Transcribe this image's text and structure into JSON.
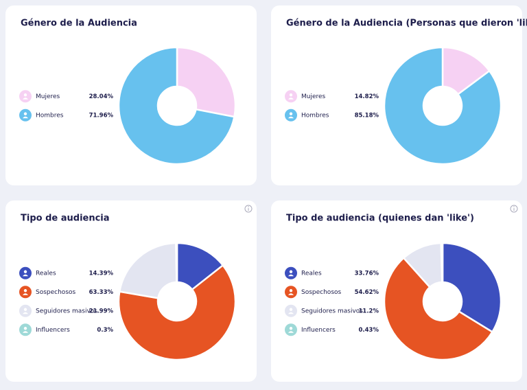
{
  "chart_data": [
    {
      "type": "pie",
      "title": "Género de la Audiencia",
      "categories": [
        "Mujeres",
        "Hombres"
      ],
      "values": [
        28.04,
        71.96
      ],
      "value_labels": [
        "28.04%",
        "71.96%"
      ],
      "colors": [
        "#f6d1f3",
        "#67c1ee"
      ]
    },
    {
      "type": "pie",
      "title": "Género de la Audiencia (Personas que dieron 'like')",
      "categories": [
        "Mujeres",
        "Hombres"
      ],
      "values": [
        14.82,
        85.18
      ],
      "value_labels": [
        "14.82%",
        "85.18%"
      ],
      "colors": [
        "#f6d1f3",
        "#67c1ee"
      ]
    },
    {
      "type": "pie",
      "title": "Tipo de audiencia",
      "categories": [
        "Reales",
        "Sospechosos",
        "Seguidores masivos",
        "Influencers"
      ],
      "values": [
        14.39,
        63.33,
        21.99,
        0.3
      ],
      "value_labels": [
        "14.39%",
        "63.33%",
        "21.99%",
        "0.3%"
      ],
      "colors": [
        "#3c4fbe",
        "#e65423",
        "#e3e5f1",
        "#9ed9d7"
      ]
    },
    {
      "type": "pie",
      "title": "Tipo de audiencia (quienes dan 'like')",
      "categories": [
        "Reales",
        "Sospechosos",
        "Seguidores masivos",
        "Influencers"
      ],
      "values": [
        33.76,
        54.62,
        11.2,
        0.43
      ],
      "value_labels": [
        "33.76%",
        "54.62%",
        "11.2%",
        "0.43%"
      ],
      "colors": [
        "#3c4fbe",
        "#e65423",
        "#e3e5f1",
        "#9ed9d7"
      ]
    }
  ]
}
